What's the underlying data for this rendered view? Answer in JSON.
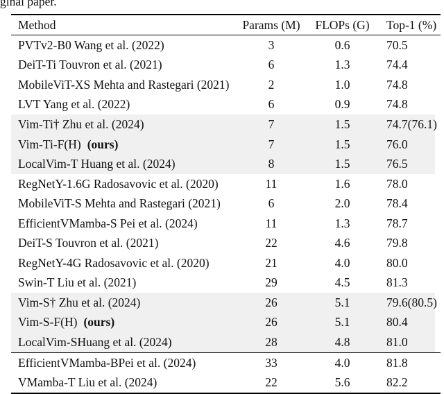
{
  "page": {
    "truncated_caption": "ginal paper."
  },
  "colors": {
    "highlight_row": "#f0f0f0",
    "text": "#111111",
    "rule": "#000000"
  },
  "table": {
    "columns": [
      "Method",
      "Params (M)",
      "FLOPs (G)",
      "Top-1 (%)"
    ],
    "rows": [
      {
        "method": "PVTv2-B0 Wang et al. (2022)",
        "bold_suffix": "",
        "params": "3",
        "flops": "0.6",
        "top1": "70.5",
        "highlight": false,
        "rule_after": false
      },
      {
        "method": "DeiT-Ti Touvron et al. (2021)",
        "bold_suffix": "",
        "params": "6",
        "flops": "1.3",
        "top1": "74.4",
        "highlight": false,
        "rule_after": false
      },
      {
        "method": "MobileViT-XS Mehta and Rastegari (2021)",
        "bold_suffix": "",
        "params": "2",
        "flops": "1.0",
        "top1": "74.8",
        "highlight": false,
        "rule_after": false
      },
      {
        "method": "LVT Yang et al. (2022)",
        "bold_suffix": "",
        "params": "6",
        "flops": "0.9",
        "top1": "74.8",
        "highlight": false,
        "rule_after": false
      },
      {
        "method": "Vim-Ti† Zhu et al. (2024)",
        "bold_suffix": "",
        "params": "7",
        "flops": "1.5",
        "top1": "74.7(76.1)",
        "highlight": true,
        "rule_after": false
      },
      {
        "method": "Vim-Ti-F(H)",
        "bold_suffix": "(ours)",
        "params": "7",
        "flops": "1.5",
        "top1": "76.0",
        "highlight": true,
        "rule_after": false
      },
      {
        "method": "LocalVim-T Huang et al. (2024)",
        "bold_suffix": "",
        "params": "8",
        "flops": "1.5",
        "top1": "76.5",
        "highlight": true,
        "rule_after": false
      },
      {
        "method": "RegNetY-1.6G Radosavovic et al. (2020)",
        "bold_suffix": "",
        "params": "11",
        "flops": "1.6",
        "top1": "78.0",
        "highlight": false,
        "rule_after": false
      },
      {
        "method": "MobileViT-S Mehta and Rastegari (2021)",
        "bold_suffix": "",
        "params": "6",
        "flops": "2.0",
        "top1": "78.4",
        "highlight": false,
        "rule_after": false
      },
      {
        "method": "EfficientVMamba-S Pei et al. (2024)",
        "bold_suffix": "",
        "params": "11",
        "flops": "1.3",
        "top1": "78.7",
        "highlight": false,
        "rule_after": false
      },
      {
        "method": "DeiT-S Touvron et al. (2021)",
        "bold_suffix": "",
        "params": "22",
        "flops": "4.6",
        "top1": "79.8",
        "highlight": false,
        "rule_after": false
      },
      {
        "method": "RegNetY-4G Radosavovic et al. (2020)",
        "bold_suffix": "",
        "params": "21",
        "flops": "4.0",
        "top1": "80.0",
        "highlight": false,
        "rule_after": false
      },
      {
        "method": "Swin-T Liu et al. (2021)",
        "bold_suffix": "",
        "params": "29",
        "flops": "4.5",
        "top1": "81.3",
        "highlight": false,
        "rule_after": false
      },
      {
        "method": "Vim-S† Zhu et al. (2024)",
        "bold_suffix": "",
        "params": "26",
        "flops": "5.1",
        "top1": "79.6(80.5)",
        "highlight": true,
        "rule_after": false
      },
      {
        "method": "Vim-S-F(H)",
        "bold_suffix": "(ours)",
        "params": "26",
        "flops": "5.1",
        "top1": "80.4",
        "highlight": true,
        "rule_after": false
      },
      {
        "method": "LocalVim-SHuang et al. (2024)",
        "bold_suffix": "",
        "params": "28",
        "flops": "4.8",
        "top1": "81.0",
        "highlight": true,
        "rule_after": true
      },
      {
        "method": "EfficientVMamba-BPei et al. (2024)",
        "bold_suffix": "",
        "params": "33",
        "flops": "4.0",
        "top1": "81.8",
        "highlight": false,
        "rule_after": false
      },
      {
        "method": "VMamba-T Liu et al. (2024)",
        "bold_suffix": "",
        "params": "22",
        "flops": "5.6",
        "top1": "82.2",
        "highlight": false,
        "rule_after": false
      }
    ]
  }
}
